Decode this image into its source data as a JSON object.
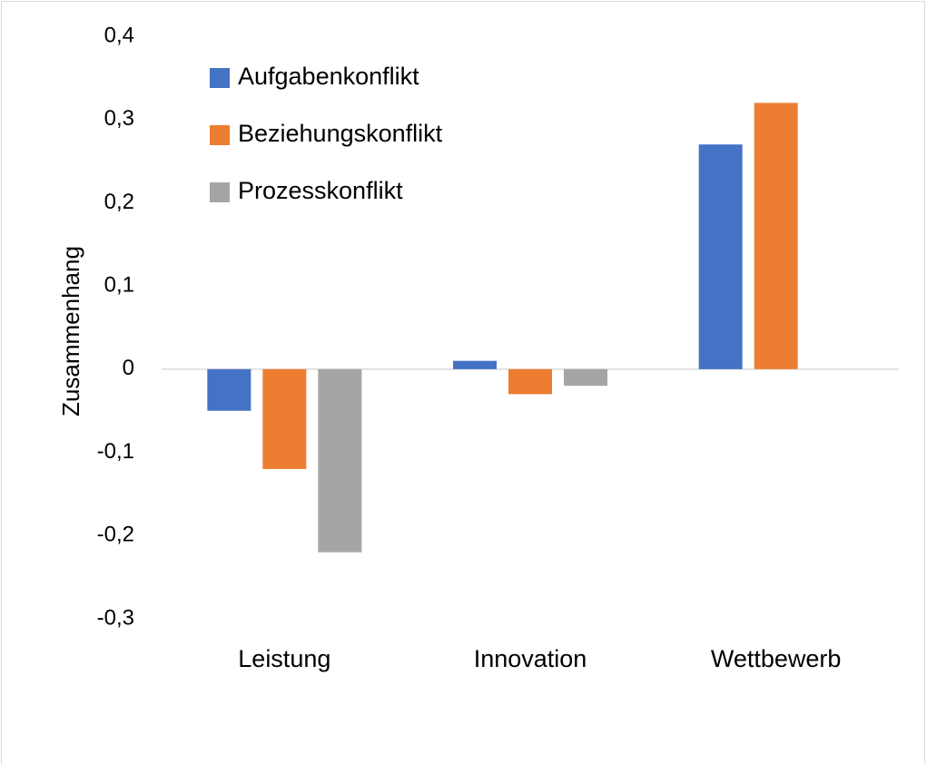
{
  "chart_data": {
    "type": "bar",
    "y_label": "Zusammenhang",
    "categories": [
      "Leistung",
      "Innovation",
      "Wettbewerb"
    ],
    "series": [
      {
        "name": "Aufgabenkonflikt",
        "color": "#4472c4",
        "values": [
          -0.05,
          0.01,
          0.27
        ]
      },
      {
        "name": "Beziehungskonflikt",
        "color": "#ed7d31",
        "values": [
          -0.12,
          -0.03,
          0.32
        ]
      },
      {
        "name": "Prozesskonflikt",
        "color": "#a5a5a5",
        "values": [
          -0.22,
          -0.02,
          null
        ]
      }
    ],
    "ylim": [
      -0.3,
      0.4
    ],
    "yticks": [
      {
        "value": 0.4,
        "label": "0,4"
      },
      {
        "value": 0.3,
        "label": "0,3"
      },
      {
        "value": 0.2,
        "label": "0,2"
      },
      {
        "value": 0.1,
        "label": "0,1"
      },
      0,
      {
        "value": -0.1,
        "label": "-0,1"
      },
      {
        "value": -0.2,
        "label": "-0,2"
      },
      {
        "value": -0.3,
        "label": "-0,3"
      }
    ],
    "legend": "upper left"
  }
}
